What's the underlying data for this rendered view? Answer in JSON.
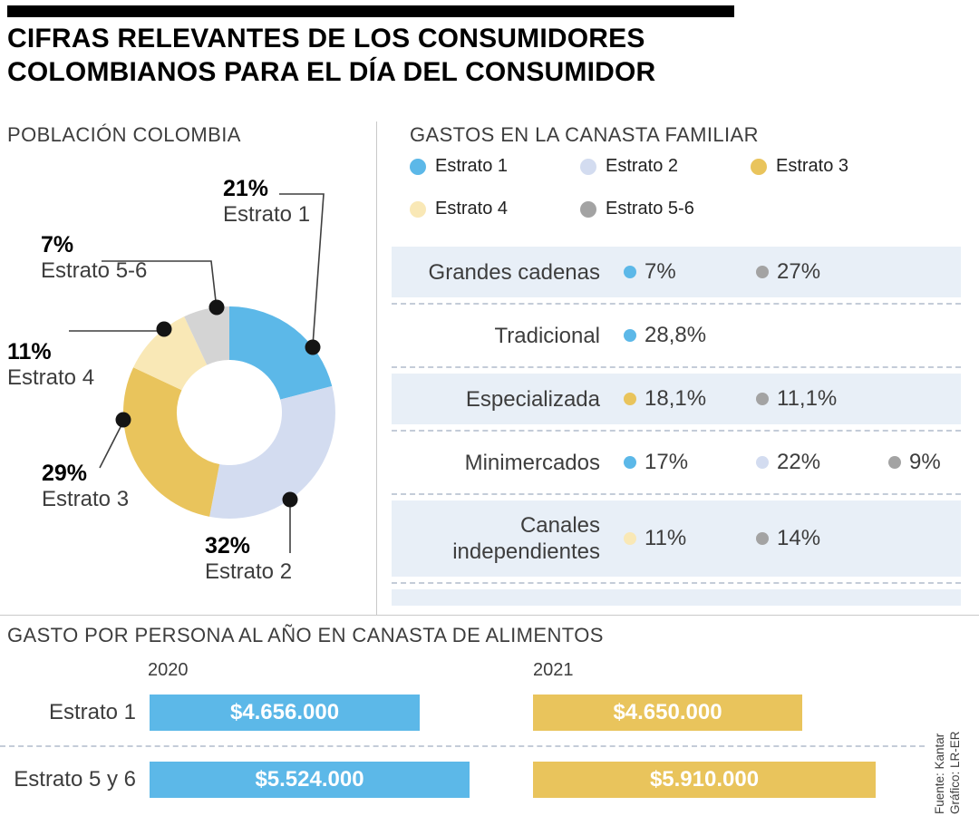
{
  "header": {
    "title_line1": "CIFRAS RELEVANTES DE LOS CONSUMIDORES",
    "title_line2": "COLOMBIANOS PARA EL DÍA DEL CONSUMIDOR"
  },
  "source": {
    "line1": "Fuente: Kantar",
    "line2": "Gráfico: LR-ER"
  },
  "colors": {
    "estrato1_blue": "#5cb8e8",
    "estrato2_lavender": "#d3dcf0",
    "estrato3_gold": "#e9c45c",
    "estrato4_cream": "#f9e8b6",
    "estrato56_gray_light": "#d4d4d4",
    "estrato56_gray_dot": "#a3a3a3",
    "row_shade": "#e8eff7",
    "bar_2020": "#5cb8e8",
    "bar_2021": "#e9c45c"
  },
  "chart_data": [
    {
      "type": "pie",
      "subtype": "donut",
      "title": "POBLACIÓN COLOMBIA",
      "segments": [
        {
          "label": "Estrato 1",
          "value": 21,
          "value_label": "21%",
          "color": "#5cb8e8"
        },
        {
          "label": "Estrato 2",
          "value": 32,
          "value_label": "32%",
          "color": "#d3dcf0"
        },
        {
          "label": "Estrato 3",
          "value": 29,
          "value_label": "29%",
          "color": "#e9c45c"
        },
        {
          "label": "Estrato 4",
          "value": 11,
          "value_label": "11%",
          "color": "#f9e8b6"
        },
        {
          "label": "Estrato 5-6",
          "value": 7,
          "value_label": "7%",
          "color": "#d4d4d4"
        }
      ]
    },
    {
      "type": "table",
      "title": "GASTOS EN LA CANASTA FAMILIAR",
      "legend": [
        {
          "label": "Estrato 1",
          "color": "#5cb8e8"
        },
        {
          "label": "Estrato 2",
          "color": "#d3dcf0"
        },
        {
          "label": "Estrato 3",
          "color": "#e9c45c"
        },
        {
          "label": "Estrato 4",
          "color": "#f9e8b6"
        },
        {
          "label": "Estrato 5-6",
          "color": "#a3a3a3"
        }
      ],
      "rows": [
        {
          "label": "Grandes cadenas",
          "shaded": true,
          "values": [
            {
              "estrato": "Estrato 1",
              "value": "7%",
              "color": "#5cb8e8"
            },
            {
              "estrato": "Estrato 5-6",
              "value": "27%",
              "color": "#a3a3a3"
            }
          ]
        },
        {
          "label": "Tradicional",
          "shaded": false,
          "values": [
            {
              "estrato": "Estrato 1",
              "value": "28,8%",
              "color": "#5cb8e8"
            }
          ]
        },
        {
          "label": "Especializada",
          "shaded": true,
          "values": [
            {
              "estrato": "Estrato 3",
              "value": "18,1%",
              "color": "#e9c45c"
            },
            {
              "estrato": "Estrato 5-6",
              "value": "11,1%",
              "color": "#a3a3a3"
            }
          ]
        },
        {
          "label": "Minimercados",
          "shaded": false,
          "values": [
            {
              "estrato": "Estrato 1",
              "value": "17%",
              "color": "#5cb8e8"
            },
            {
              "estrato": "Estrato 2",
              "value": "22%",
              "color": "#d3dcf0"
            },
            {
              "estrato": "Estrato 5-6",
              "value": "9%",
              "color": "#a3a3a3"
            }
          ]
        },
        {
          "label": "Canales independientes",
          "label_line1": "Canales",
          "label_line2": "independientes",
          "shaded": true,
          "values": [
            {
              "estrato": "Estrato 4",
              "value": "11%",
              "color": "#f9e8b6"
            },
            {
              "estrato": "Estrato 5-6",
              "value": "14%",
              "color": "#a3a3a3"
            }
          ]
        }
      ]
    },
    {
      "type": "bar",
      "title": "GASTO POR PERSONA AL AÑO EN CANASTA DE ALIMENTOS",
      "series": [
        {
          "name": "2020",
          "color": "#5cb8e8"
        },
        {
          "name": "2021",
          "color": "#e9c45c"
        }
      ],
      "categories": [
        "Estrato 1",
        "Estrato 5 y 6"
      ],
      "rows": [
        {
          "label": "Estrato 1",
          "values": [
            4656000,
            4650000
          ],
          "value_labels": [
            "$4.656.000",
            "$4.650.000"
          ]
        },
        {
          "label": "Estrato 5 y 6",
          "values": [
            5524000,
            5910000
          ],
          "value_labels": [
            "$5.524.000",
            "$5.910.000"
          ]
        }
      ]
    }
  ]
}
